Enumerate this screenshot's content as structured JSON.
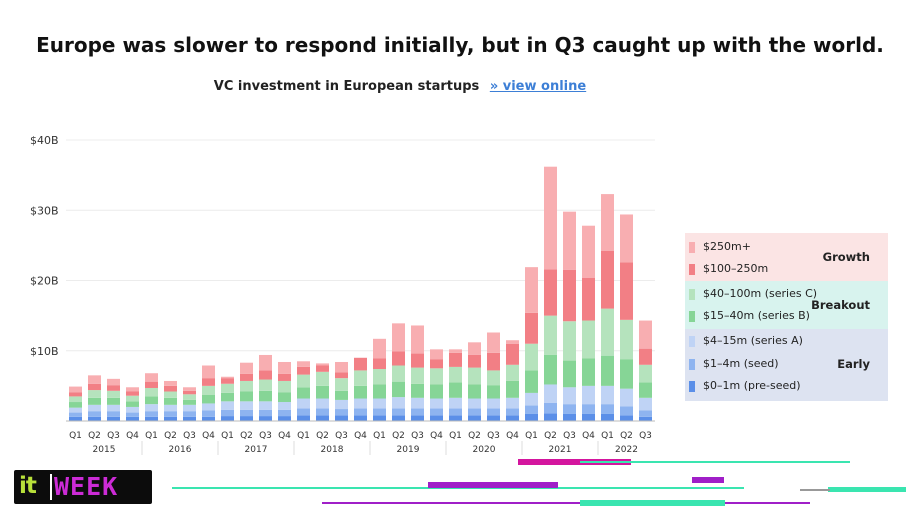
{
  "headline": "Europe was slower to respond initially, but in Q3 caught up with the world.",
  "subtitle": "VC investment in European startups",
  "view_link": "» view online",
  "logo": {
    "left": "it",
    "right": "WEEK"
  },
  "chart_data": {
    "type": "bar",
    "stacked": true,
    "title": "VC investment in European startups",
    "y_ticks": [
      "$40B",
      "$30B",
      "$20B",
      "$10B"
    ],
    "y_tick_values": [
      40,
      30,
      20,
      10
    ],
    "ylim": [
      0,
      40
    ],
    "y_unit": "B USD",
    "grid": true,
    "categories": [
      "Q1",
      "Q2",
      "Q3",
      "Q4",
      "Q1",
      "Q2",
      "Q3",
      "Q4",
      "Q1",
      "Q2",
      "Q3",
      "Q4",
      "Q1",
      "Q2",
      "Q3",
      "Q4",
      "Q1",
      "Q2",
      "Q3",
      "Q4",
      "Q1",
      "Q2",
      "Q3",
      "Q4",
      "Q1",
      "Q2",
      "Q3",
      "Q4",
      "Q1",
      "Q2",
      "Q3"
    ],
    "years": [
      {
        "label": "2015",
        "count": 4
      },
      {
        "label": "2016",
        "count": 4
      },
      {
        "label": "2017",
        "count": 4
      },
      {
        "label": "2018",
        "count": 4
      },
      {
        "label": "2019",
        "count": 4
      },
      {
        "label": "2020",
        "count": 4
      },
      {
        "label": "2021",
        "count": 4
      },
      {
        "label": "2022",
        "count": 3
      }
    ],
    "series": [
      {
        "name": "$0–1m (pre-seed)",
        "color": "#5b8fe8",
        "values": [
          0.6,
          0.6,
          0.6,
          0.6,
          0.6,
          0.6,
          0.6,
          0.6,
          0.7,
          0.7,
          0.7,
          0.7,
          0.8,
          0.8,
          0.8,
          0.8,
          0.8,
          0.8,
          0.8,
          0.8,
          0.8,
          0.8,
          0.8,
          0.8,
          1.0,
          1.1,
          1.0,
          1.0,
          1.0,
          0.8,
          0.6
        ]
      },
      {
        "name": "$1–4m (seed)",
        "color": "#8eb4f0",
        "values": [
          0.6,
          0.8,
          0.8,
          0.6,
          0.8,
          0.8,
          0.8,
          0.9,
          0.9,
          0.9,
          0.9,
          0.9,
          1.0,
          1.0,
          0.9,
          1.0,
          1.0,
          1.0,
          1.0,
          1.0,
          1.0,
          1.0,
          1.0,
          1.0,
          1.2,
          1.5,
          1.4,
          1.4,
          1.4,
          1.3,
          0.9
        ]
      },
      {
        "name": "$4–15m (series A)",
        "color": "#bfd3f5",
        "values": [
          0.7,
          0.9,
          0.9,
          0.8,
          1.0,
          0.9,
          0.9,
          1.0,
          1.2,
          1.2,
          1.2,
          1.1,
          1.4,
          1.4,
          1.3,
          1.4,
          1.4,
          1.6,
          1.5,
          1.4,
          1.5,
          1.4,
          1.4,
          1.5,
          1.8,
          2.6,
          2.4,
          2.6,
          2.6,
          2.5,
          1.8
        ]
      },
      {
        "name": "$15–40m (series B)",
        "color": "#86d596",
        "values": [
          0.8,
          1.0,
          1.0,
          0.8,
          1.1,
          1.0,
          0.7,
          1.2,
          1.2,
          1.4,
          1.5,
          1.4,
          1.6,
          1.8,
          1.3,
          1.8,
          2.0,
          2.2,
          2.0,
          2.0,
          2.2,
          2.0,
          1.9,
          2.4,
          3.2,
          4.2,
          3.8,
          3.9,
          4.3,
          4.2,
          2.2
        ]
      },
      {
        "name": "$40–100m (series C)",
        "color": "#b5e3bd",
        "values": [
          0.8,
          1.1,
          1.0,
          0.8,
          1.2,
          0.9,
          0.8,
          1.3,
          1.3,
          1.5,
          1.6,
          1.6,
          1.8,
          2.0,
          1.8,
          2.2,
          2.2,
          2.3,
          2.3,
          2.3,
          2.2,
          2.4,
          2.1,
          2.3,
          3.8,
          5.6,
          5.6,
          5.4,
          6.7,
          5.6,
          2.5
        ]
      },
      {
        "name": "$100–250m",
        "color": "#f27f85",
        "values": [
          0.6,
          0.9,
          0.8,
          0.6,
          0.9,
          0.8,
          0.5,
          1.1,
          0.8,
          1.0,
          1.3,
          1.0,
          1.1,
          0.9,
          0.8,
          1.8,
          1.5,
          2.0,
          2.0,
          1.3,
          2.0,
          1.8,
          2.5,
          3.0,
          4.4,
          6.6,
          7.3,
          6.1,
          8.2,
          8.2,
          2.3
        ]
      },
      {
        "name": "$250m+",
        "color": "#f8aeb1",
        "values": [
          0.8,
          1.2,
          0.9,
          0.6,
          1.2,
          0.7,
          0.5,
          1.8,
          0.2,
          1.6,
          2.2,
          1.7,
          0.8,
          0.3,
          1.5,
          0.0,
          2.8,
          4.0,
          4.0,
          1.4,
          0.5,
          1.8,
          2.9,
          0.5,
          6.5,
          14.6,
          8.3,
          7.4,
          8.1,
          6.8,
          4.0
        ]
      }
    ],
    "legend": {
      "placement": "right",
      "groups": [
        {
          "name": "Growth",
          "color": "#fbe4e4",
          "items": [
            "$250m+",
            "$100–250m"
          ]
        },
        {
          "name": "Breakout",
          "color": "#d8f3ee",
          "items": [
            "$40–100m (series C)",
            "$15–40m (series B)"
          ]
        },
        {
          "name": "Early",
          "color": "#dde3f1",
          "items": [
            "$4–15m (series A)",
            "$1–4m (seed)",
            "$0–1m (pre-seed)"
          ]
        }
      ]
    }
  }
}
